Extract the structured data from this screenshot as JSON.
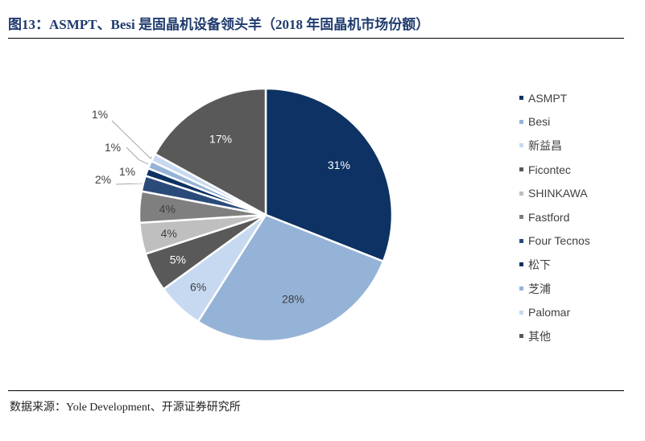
{
  "header": {
    "title": "图13：ASMPT、Besi 是固晶机设备领头羊（2018 年固晶机市场份额）"
  },
  "footer": {
    "source": "数据来源：Yole Development、开源证券研究所"
  },
  "chart_data": {
    "type": "pie",
    "title": "图13：ASMPT、Besi 是固晶机设备领头羊（2018 年固晶机市场份额）",
    "unit": "%",
    "start_angle": "12 o'clock, clockwise",
    "legend_position": "right",
    "slices": [
      {
        "name": "ASMPT",
        "value": 31,
        "label": "31%",
        "color": "#0d3263",
        "label_color": "#ffffff"
      },
      {
        "name": "Besi",
        "value": 28,
        "label": "28%",
        "color": "#95b3d7",
        "label_color": "#404040"
      },
      {
        "name": "新益昌",
        "value": 6,
        "label": "6%",
        "color": "#c6d9f1",
        "label_color": "#404040"
      },
      {
        "name": "Ficontec",
        "value": 5,
        "label": "5%",
        "color": "#595959",
        "label_color": "#ffffff"
      },
      {
        "name": "SHINKAWA",
        "value": 4,
        "label": "4%",
        "color": "#bfbfbf",
        "label_color": "#404040"
      },
      {
        "name": "Fastford",
        "value": 4,
        "label": "4%",
        "color": "#7f7f7f",
        "label_color": "#404040"
      },
      {
        "name": "Four Tecnos",
        "value": 2,
        "label": "2%",
        "color": "#2a4a7a",
        "label_color": "#404040"
      },
      {
        "name": "松下",
        "value": 1,
        "label": "1%",
        "color": "#0d3263",
        "label_color": "#404040"
      },
      {
        "name": "芝浦",
        "value": 1,
        "label": "1%",
        "color": "#95b3d7",
        "label_color": "#404040"
      },
      {
        "name": "Palomar",
        "value": 1,
        "label": "1%",
        "color": "#c6d9f1",
        "label_color": "#404040"
      },
      {
        "name": "其他",
        "value": 17,
        "label": "17%",
        "color": "#595959",
        "label_color": "#ffffff"
      }
    ]
  }
}
